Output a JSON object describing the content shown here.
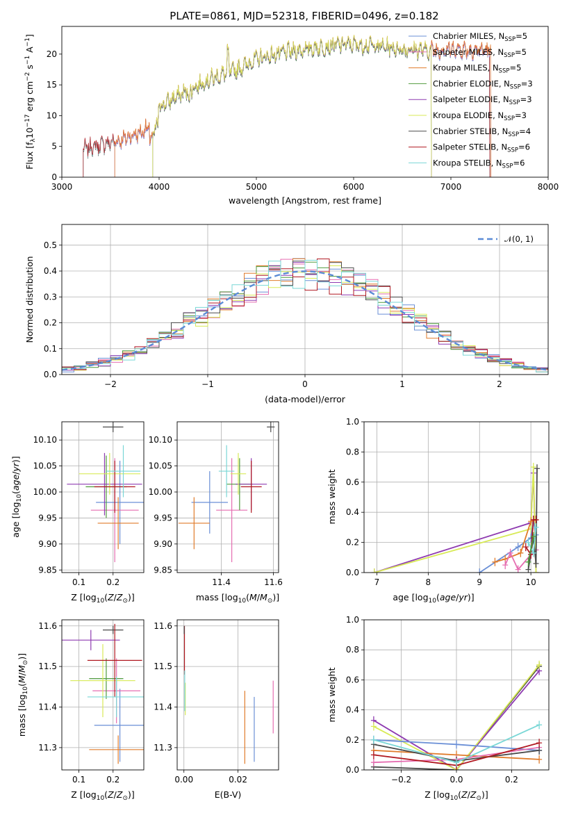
{
  "title": "PLATE=0861, MJD=52318, FIBERID=0496, z=0.182",
  "colors": {
    "chabrier_miles": "#6a8fd6",
    "salpeter_miles": "#e56db1",
    "kroupa_miles": "#e07b2a",
    "chabrier_elodie": "#4f9a3c",
    "salpeter_elodie": "#8e3ab0",
    "kroupa_elodie": "#d8ea56",
    "chabrier_stelib": "#4a4a4a",
    "salpeter_stelib": "#b01820",
    "kroupa_stelib": "#79d7d6"
  },
  "chart_data": [
    {
      "id": "spectrum",
      "type": "line",
      "xlabel": "wavelength [Angstrom, rest frame]",
      "ylabel": "Flux [f_λ10^-17 erg cm^-2 s^-1 A^-1]",
      "xlim": [
        3000,
        8000
      ],
      "ylim": [
        0,
        24.5
      ],
      "xticks": [
        3000,
        4000,
        5000,
        6000,
        7000,
        8000
      ],
      "yticks": [
        0,
        5,
        10,
        15,
        20
      ],
      "legend_position": "right",
      "legend": [
        {
          "model": "Chabrier MILES",
          "nssp": "5",
          "color": "chabrier_miles"
        },
        {
          "model": "Salpeter MILES",
          "nssp": "5",
          "color": "salpeter_miles"
        },
        {
          "model": "Kroupa MILES",
          "nssp": "5",
          "color": "kroupa_miles"
        },
        {
          "model": "Chabrier ELODIE",
          "nssp": "3",
          "color": "chabrier_elodie"
        },
        {
          "model": "Salpeter ELODIE",
          "nssp": "3",
          "color": "salpeter_elodie"
        },
        {
          "model": "Kroupa ELODIE",
          "nssp": "3",
          "color": "kroupa_elodie"
        },
        {
          "model": "Chabrier STELIB",
          "nssp": "4",
          "color": "chabrier_stelib"
        },
        {
          "model": "Salpeter STELIB",
          "nssp": "6",
          "color": "salpeter_stelib"
        },
        {
          "model": "Kroupa STELIB",
          "nssp": "6",
          "color": "kroupa_stelib"
        }
      ],
      "wavelength_coverage": {
        "MILES": [
          3540,
          7410
        ],
        "ELODIE": [
          3930,
          6800
        ],
        "STELIB": [
          3220,
          7400
        ]
      },
      "continuum": [
        [
          3220,
          4.5
        ],
        [
          3400,
          5.2
        ],
        [
          3600,
          6.0
        ],
        [
          3800,
          7.2
        ],
        [
          3900,
          8.0
        ],
        [
          4000,
          11.5
        ],
        [
          4200,
          13.2
        ],
        [
          4500,
          15.8
        ],
        [
          4800,
          17.5
        ],
        [
          5000,
          19.2
        ],
        [
          5300,
          20.3
        ],
        [
          5600,
          21.0
        ],
        [
          5900,
          21.6
        ],
        [
          6200,
          21.4
        ],
        [
          6500,
          20.8
        ],
        [
          6800,
          20.6
        ],
        [
          7100,
          20.8
        ],
        [
          7400,
          20.5
        ]
      ]
    },
    {
      "id": "residuals",
      "type": "line",
      "xlabel": "(data-model)/error",
      "ylabel": "Normed distribution",
      "xlim": [
        -2.5,
        2.5
      ],
      "ylim": [
        0,
        0.58
      ],
      "xticks": [
        -2,
        -1,
        0,
        1,
        2
      ],
      "yticks": [
        0.0,
        0.1,
        0.2,
        0.3,
        0.4,
        0.5
      ],
      "legend": "𝒩(0, 1)",
      "legend_position": "top-right",
      "bin_width": 0.125,
      "histogram_series": [
        "chabrier_miles",
        "salpeter_miles",
        "kroupa_miles",
        "chabrier_elodie",
        "salpeter_elodie",
        "kroupa_elodie",
        "chabrier_stelib",
        "salpeter_stelib",
        "kroupa_stelib"
      ]
    },
    {
      "id": "age_vs_Z",
      "type": "scatter",
      "xlabel": "Z [log10(Z/Z⊙)]",
      "ylabel": "age [log10(age/yr)]",
      "xlim": [
        0.05,
        0.29
      ],
      "ylim": [
        9.845,
        10.135
      ],
      "xticks": [
        0.1,
        0.2
      ],
      "yticks": [
        9.85,
        9.9,
        9.95,
        10.0,
        10.05,
        10.1
      ],
      "points": [
        {
          "s": "chabrier_miles",
          "x": 0.22,
          "xe": 0.07,
          "y": 9.98,
          "ye": 0.08
        },
        {
          "s": "salpeter_miles",
          "x": 0.205,
          "xe": 0.07,
          "y": 9.965,
          "ye": 0.1
        },
        {
          "s": "kroupa_miles",
          "x": 0.215,
          "xe": 0.06,
          "y": 9.94,
          "ye": 0.05
        },
        {
          "s": "chabrier_elodie",
          "x": 0.18,
          "xe": 0.06,
          "y": 10.01,
          "ye": 0.06
        },
        {
          "s": "salpeter_elodie",
          "x": 0.175,
          "xe": 0.11,
          "y": 10.015,
          "ye": 0.06
        },
        {
          "s": "kroupa_elodie",
          "x": 0.19,
          "xe": 0.09,
          "y": 10.035,
          "ye": 0.04
        },
        {
          "s": "chabrier_stelib",
          "x": 0.2,
          "xe": 0.03,
          "y": 10.125,
          "ye": 0.01
        },
        {
          "s": "salpeter_stelib",
          "x": 0.205,
          "xe": 0.06,
          "y": 10.01,
          "ye": 0.05
        },
        {
          "s": "kroupa_stelib",
          "x": 0.23,
          "xe": 0.05,
          "y": 10.04,
          "ye": 0.05
        }
      ]
    },
    {
      "id": "age_vs_mass",
      "type": "scatter",
      "xlabel": "mass [log10(M/M⊙)]",
      "ylabel": "",
      "xlim": [
        11.23,
        11.62
      ],
      "ylim": [
        9.845,
        10.135
      ],
      "xticks": [
        11.4,
        11.6
      ],
      "yticks": [
        9.85,
        9.9,
        9.95,
        10.0,
        10.05,
        10.1
      ],
      "points": [
        {
          "s": "chabrier_miles",
          "x": 11.355,
          "xe": 0.07,
          "y": 9.98,
          "ye": 0.06
        },
        {
          "s": "salpeter_miles",
          "x": 11.44,
          "xe": 0.06,
          "y": 9.965,
          "ye": 0.1
        },
        {
          "s": "kroupa_miles",
          "x": 11.295,
          "xe": 0.06,
          "y": 9.94,
          "ye": 0.05
        },
        {
          "s": "chabrier_elodie",
          "x": 11.47,
          "xe": 0.05,
          "y": 10.015,
          "ye": 0.05
        },
        {
          "s": "salpeter_elodie",
          "x": 11.515,
          "xe": 0.06,
          "y": 10.015,
          "ye": 0.05
        },
        {
          "s": "kroupa_elodie",
          "x": 11.465,
          "xe": 0.03,
          "y": 10.035,
          "ye": 0.04
        },
        {
          "s": "chabrier_stelib",
          "x": 11.59,
          "xe": 0.015,
          "y": 10.125,
          "ye": 0.01
        },
        {
          "s": "salpeter_stelib",
          "x": 11.515,
          "xe": 0.04,
          "y": 10.01,
          "ye": 0.05
        },
        {
          "s": "kroupa_stelib",
          "x": 11.42,
          "xe": 0.03,
          "y": 10.04,
          "ye": 0.05
        }
      ]
    },
    {
      "id": "massweight_vs_age",
      "type": "line",
      "xlabel": "age [log10(age/yr)]",
      "ylabel": "mass weight",
      "xlim": [
        6.75,
        10.35
      ],
      "ylim": [
        0,
        1.0
      ],
      "xticks": [
        7,
        8,
        9,
        10
      ],
      "yticks": [
        0.0,
        0.2,
        0.4,
        0.6,
        0.8,
        1.0
      ],
      "series": [
        {
          "s": "salpeter_elodie",
          "x": [
            6.95,
            10.0,
            10.05,
            10.1
          ],
          "y": [
            0.0,
            0.33,
            0.66,
            0.0
          ]
        },
        {
          "s": "kroupa_elodie",
          "x": [
            6.95,
            10.0,
            10.05,
            10.1
          ],
          "y": [
            0.0,
            0.29,
            0.7,
            0.0
          ]
        },
        {
          "s": "chabrier_miles",
          "x": [
            9.0,
            9.75,
            10.0,
            10.05,
            10.1
          ],
          "y": [
            0.0,
            0.17,
            0.23,
            0.35,
            0.25
          ]
        },
        {
          "s": "kroupa_miles",
          "x": [
            9.3,
            9.5,
            9.8,
            10.0,
            10.1
          ],
          "y": [
            0.07,
            0.09,
            0.13,
            0.34,
            0.35
          ]
        },
        {
          "s": "salpeter_miles",
          "x": [
            9.5,
            9.6,
            9.75,
            10.0,
            10.1
          ],
          "y": [
            0.05,
            0.13,
            0.02,
            0.12,
            0.15
          ]
        },
        {
          "s": "chabrier_stelib",
          "x": [
            9.95,
            10.05,
            10.1,
            10.12
          ],
          "y": [
            0.02,
            0.23,
            0.06,
            0.69
          ]
        },
        {
          "s": "salpeter_stelib",
          "x": [
            9.9,
            10.0,
            10.05,
            10.1
          ],
          "y": [
            0.17,
            0.12,
            0.35,
            0.35
          ]
        },
        {
          "s": "kroupa_stelib",
          "x": [
            9.95,
            10.05,
            10.1
          ],
          "y": [
            0.2,
            0.13,
            0.3
          ]
        },
        {
          "s": "chabrier_elodie",
          "x": [
            9.95,
            10.05
          ],
          "y": [
            0.07,
            0.24
          ]
        }
      ]
    },
    {
      "id": "mass_vs_Z",
      "type": "scatter",
      "xlabel": "Z [log10(Z/Z⊙)]",
      "ylabel": "mass [log10(M/M⊙)]",
      "xlim": [
        0.05,
        0.29
      ],
      "ylim": [
        11.245,
        11.615
      ],
      "xticks": [
        0.1,
        0.2
      ],
      "yticks": [
        11.3,
        11.4,
        11.5,
        11.6
      ],
      "points": [
        {
          "s": "chabrier_miles",
          "x": 0.22,
          "xe": 0.075,
          "y": 11.355,
          "ye": 0.09
        },
        {
          "s": "salpeter_miles",
          "x": 0.21,
          "xe": 0.07,
          "y": 11.44,
          "ye": 0.08
        },
        {
          "s": "kroupa_miles",
          "x": 0.215,
          "xe": 0.085,
          "y": 11.295,
          "ye": 0.035
        },
        {
          "s": "chabrier_elodie",
          "x": 0.18,
          "xe": 0.05,
          "y": 11.47,
          "ye": 0.05
        },
        {
          "s": "salpeter_elodie",
          "x": 0.135,
          "xe": 0.085,
          "y": 11.565,
          "ye": 0.025
        },
        {
          "s": "kroupa_elodie",
          "x": 0.17,
          "xe": 0.095,
          "y": 11.465,
          "ye": 0.09
        },
        {
          "s": "chabrier_stelib",
          "x": 0.2,
          "xe": 0.03,
          "y": 11.59,
          "ye": 0.01
        },
        {
          "s": "salpeter_stelib",
          "x": 0.205,
          "xe": 0.08,
          "y": 11.515,
          "ye": 0.09
        },
        {
          "s": "kroupa_stelib",
          "x": 0.21,
          "xe": 0.085,
          "y": 11.425,
          "ye": 0.05
        }
      ]
    },
    {
      "id": "mass_vs_ebv",
      "type": "scatter",
      "xlabel": "E(B-V)",
      "ylabel": "",
      "xlim": [
        -0.0025,
        0.035
      ],
      "ylim": [
        11.245,
        11.615
      ],
      "xticks": [
        0.0,
        0.02
      ],
      "yticks": [
        11.3,
        11.4,
        11.5,
        11.6
      ],
      "points": [
        {
          "s": "chabrier_miles",
          "x": 0.026,
          "xe": 0,
          "y": 11.345,
          "ye": 0.08
        },
        {
          "s": "salpeter_miles",
          "x": 0.033,
          "xe": 0,
          "y": 11.4,
          "ye": 0.065
        },
        {
          "s": "kroupa_miles",
          "x": 0.0225,
          "xe": 0,
          "y": 11.35,
          "ye": 0.09
        },
        {
          "s": "salpeter_stelib",
          "x": 0.0002,
          "xe": 0,
          "y": 11.54,
          "ye": 0.06
        },
        {
          "s": "kroupa_elodie",
          "x": 0.0005,
          "xe": 0,
          "y": 11.42,
          "ye": 0.04
        },
        {
          "s": "kroupa_stelib",
          "x": 0.0003,
          "xe": 0,
          "y": 11.44,
          "ye": 0.05
        },
        {
          "s": "chabrier_stelib",
          "x": 0.0001,
          "xe": 0,
          "y": 11.59,
          "ye": 0.01
        }
      ]
    },
    {
      "id": "massweight_vs_Z",
      "type": "line",
      "xlabel": "Z [log10(Z/Z⊙)]",
      "ylabel": "mass weight",
      "xlim": [
        -0.335,
        0.335
      ],
      "ylim": [
        0,
        1.0
      ],
      "xticks": [
        -0.2,
        0.0,
        0.2
      ],
      "yticks": [
        0.0,
        0.2,
        0.4,
        0.6,
        0.8,
        1.0
      ],
      "series": [
        {
          "s": "chabrier_stelib",
          "x": [
            -0.3,
            0.0,
            0.3
          ],
          "y": [
            0.02,
            0.0,
            0.69
          ]
        },
        {
          "s": "salpeter_elodie",
          "x": [
            -0.3,
            0.0,
            0.3
          ],
          "y": [
            0.33,
            0.0,
            0.66
          ]
        },
        {
          "s": "kroupa_elodie",
          "x": [
            -0.3,
            0.0,
            0.3
          ],
          "y": [
            0.29,
            0.0,
            0.7
          ]
        },
        {
          "s": "chabrier_miles",
          "x": [
            -0.3,
            0.0,
            0.3
          ],
          "y": [
            0.2,
            0.17,
            0.13
          ]
        },
        {
          "s": "kroupa_miles",
          "x": [
            -0.3,
            0.0,
            0.3
          ],
          "y": [
            0.13,
            0.1,
            0.07
          ]
        },
        {
          "s": "salpeter_miles",
          "x": [
            -0.3,
            0.0,
            0.3
          ],
          "y": [
            0.05,
            0.07,
            0.15
          ]
        },
        {
          "s": "chabrier_stelib",
          "x": [
            -0.3,
            0.0,
            0.3
          ],
          "y": [
            0.17,
            0.06,
            0.13
          ]
        },
        {
          "s": "salpeter_stelib",
          "x": [
            -0.3,
            0.0,
            0.3
          ],
          "y": [
            0.1,
            0.03,
            0.18
          ]
        },
        {
          "s": "kroupa_stelib",
          "x": [
            -0.3,
            0.0,
            0.3
          ],
          "y": [
            0.2,
            0.05,
            0.3
          ]
        }
      ]
    }
  ]
}
